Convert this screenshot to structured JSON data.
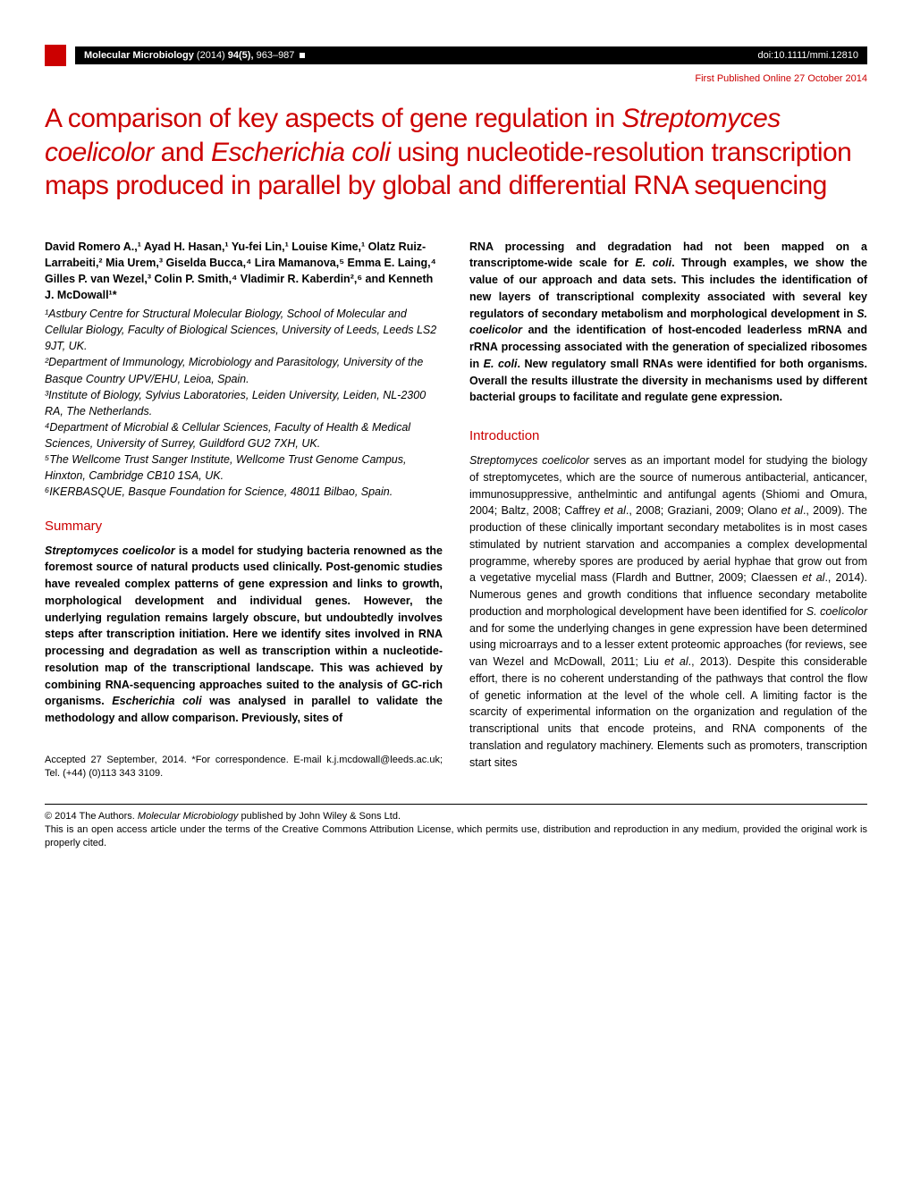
{
  "header": {
    "journal_name": "Molecular Microbiology",
    "year_vol": "(2014)",
    "issue": "94(5),",
    "pages": "963–987",
    "doi": "doi:10.1111/mmi.12810",
    "pub_date": "First Published Online 27 October 2014"
  },
  "title": {
    "line1": "A comparison of key aspects of gene regulation in ",
    "italic1": "Streptomyces coelicolor",
    "mid1": " and ",
    "italic2": "Escherichia coli",
    "line2": " using nucleotide-resolution transcription maps produced in parallel by global and differential RNA sequencing"
  },
  "authors": "David Romero A.,¹ Ayad H. Hasan,¹ Yu-fei Lin,¹ Louise Kime,¹ Olatz Ruiz-Larrabeiti,² Mia Urem,³ Giselda Bucca,⁴ Lira Mamanova,⁵ Emma E. Laing,⁴ Gilles P. van Wezel,³ Colin P. Smith,⁴ Vladimir R. Kaberdin²,⁶ and Kenneth J. McDowall¹*",
  "affiliations": "¹Astbury Centre for Structural Molecular Biology, School of Molecular and Cellular Biology, Faculty of Biological Sciences, University of Leeds, Leeds LS2 9JT, UK.\n²Department of Immunology, Microbiology and Parasitology, University of the Basque Country UPV/EHU, Leioa, Spain.\n³Institute of Biology, Sylvius Laboratories, Leiden University, Leiden, NL-2300 RA, The Netherlands.\n⁴Department of Microbial & Cellular Sciences, Faculty of Health & Medical Sciences, University of Surrey, Guildford GU2 7XH, UK.\n⁵The Wellcome Trust Sanger Institute, Wellcome Trust Genome Campus, Hinxton, Cambridge CB10 1SA, UK.\n⁶IKERBASQUE, Basque Foundation for Science, 48011 Bilbao, Spain.",
  "summary_heading": "Summary",
  "summary": {
    "p1a": "Streptomyces coelicolor",
    "p1b": " is a model for studying bacteria renowned as the foremost source of natural products used clinically. Post-genomic studies have revealed complex patterns of gene expression and links to growth, morphological development and individual genes. However, the underlying regulation remains largely obscure, but undoubtedly involves steps after transcription initiation. Here we identify sites involved in RNA processing and degradation as well as transcription within a nucleotide-resolution map of the transcriptional landscape. This was achieved by combining RNA-sequencing approaches suited to the analysis of GC-rich organisms. ",
    "p1c": "Escherichia coli",
    "p1d": " was analysed in parallel to validate the methodology and allow comparison. Previously, sites of"
  },
  "abstract_cont": {
    "p1a": "RNA processing and degradation had not been mapped on a transcriptome-wide scale for ",
    "p1b": "E. coli",
    "p1c": ". Through examples, we show the value of our approach and data sets. This includes the identification of new layers of transcriptional complexity associated with several key regulators of secondary metabolism and morphological development in ",
    "p1d": "S. coelicolor",
    "p1e": " and the identification of host-encoded leaderless mRNA and rRNA processing associated with the generation of specialized ribosomes in ",
    "p1f": "E. coli",
    "p1g": ". New regulatory small RNAs were identified for both organisms. Overall the results illustrate the diversity in mechanisms used by different bacterial groups to facilitate and regulate gene expression."
  },
  "intro_heading": "Introduction",
  "intro": {
    "p1a": "Streptomyces coelicolor",
    "p1b": " serves as an important model for studying the biology of streptomycetes, which are the source of numerous antibacterial, anticancer, immunosuppressive, anthelmintic and antifungal agents (Shiomi and Omura, 2004; Baltz, 2008; Caffrey ",
    "p1c": "et al",
    "p1d": "., 2008; Graziani, 2009; Olano ",
    "p1e": "et al",
    "p1f": "., 2009). The production of these clinically important secondary metabolites is in most cases stimulated by nutrient starvation and accompanies a complex developmental programme, whereby spores are produced by aerial hyphae that grow out from a vegetative mycelial mass (Flardh and Buttner, 2009; Claessen ",
    "p1g": "et al",
    "p1h": "., 2014). Numerous genes and growth conditions that influence secondary metabolite production and morphological development have been identified for ",
    "p1i": "S. coelicolor",
    "p1j": " and for some the underlying changes in gene expression have been determined using microarrays and to a lesser extent proteomic approaches (for reviews, see van Wezel and McDowall, 2011; Liu ",
    "p1k": "et al",
    "p1l": "., 2013). Despite this considerable effort, there is no coherent understanding of the pathways that control the flow of genetic information at the level of the whole cell. A limiting factor is the scarcity of experimental information on the organization and regulation of the transcriptional units that encode proteins, and RNA components of the translation and regulatory machinery. Elements such as promoters, transcription start sites"
  },
  "correspondence": "Accepted 27 September, 2014. *For correspondence. E-mail k.j.mcdowall@leeds.ac.uk; Tel. (+44) (0)113 343 3109.",
  "copyright": {
    "p1a": "© 2014 The Authors. ",
    "p1b": "Molecular Microbiology",
    "p1c": " published by John Wiley & Sons Ltd."
  },
  "license": "This is an open access article under the terms of the Creative Commons Attribution License, which permits use, distribution and reproduction in any medium, provided the original work is properly cited."
}
